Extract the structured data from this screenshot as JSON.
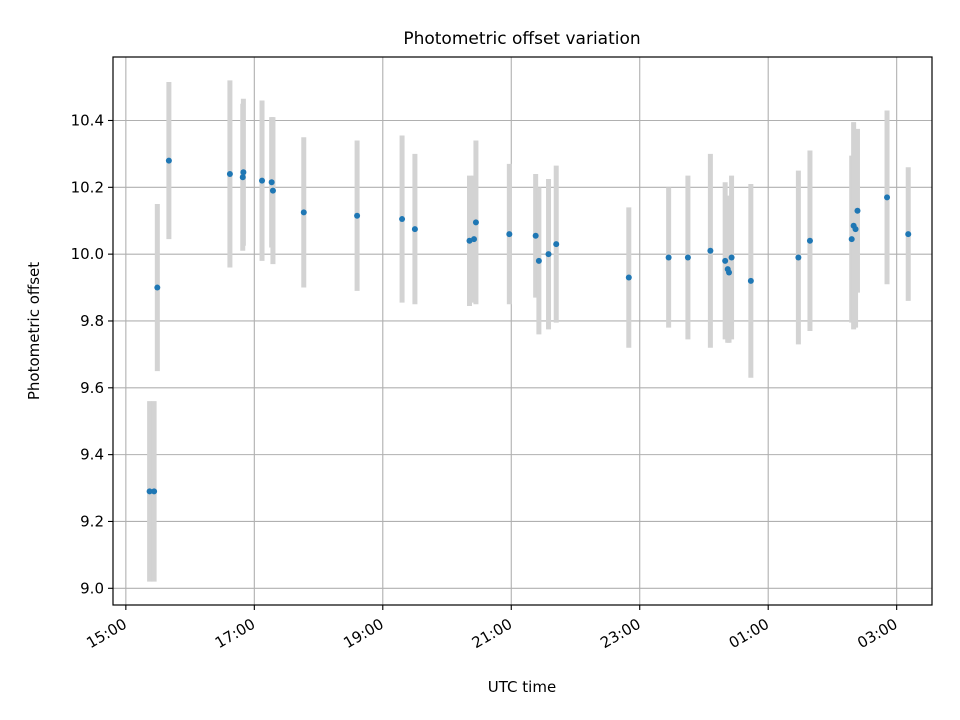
{
  "chart_data": {
    "type": "scatter",
    "title": "Photometric offset variation",
    "xlabel": "UTC time",
    "ylabel": "Photometric offset",
    "xlim_hours": [
      14.8,
      27.55
    ],
    "ylim": [
      8.95,
      10.59
    ],
    "x_ticks": [
      {
        "value": 15,
        "label": "15:00"
      },
      {
        "value": 17,
        "label": "17:00"
      },
      {
        "value": 19,
        "label": "19:00"
      },
      {
        "value": 21,
        "label": "21:00"
      },
      {
        "value": 23,
        "label": "23:00"
      },
      {
        "value": 25,
        "label": "01:00"
      },
      {
        "value": 27,
        "label": "03:00"
      }
    ],
    "y_ticks": [
      {
        "value": 9.0,
        "label": "9.0"
      },
      {
        "value": 9.2,
        "label": "9.2"
      },
      {
        "value": 9.4,
        "label": "9.4"
      },
      {
        "value": 9.6,
        "label": "9.6"
      },
      {
        "value": 9.8,
        "label": "9.8"
      },
      {
        "value": 10.0,
        "label": "10.0"
      },
      {
        "value": 10.2,
        "label": "10.2"
      },
      {
        "value": 10.4,
        "label": "10.4"
      }
    ],
    "grid": true,
    "colors": {
      "point": "#1f77b4",
      "errorbar": "#d3d3d3",
      "grid": "#b0b0b0"
    },
    "series": [
      {
        "points": [
          {
            "x": 15.37,
            "y": 9.29,
            "err": 0.27
          },
          {
            "x": 15.44,
            "y": 9.29,
            "err": 0.27
          },
          {
            "x": 15.49,
            "y": 9.9,
            "err": 0.25
          },
          {
            "x": 15.67,
            "y": 10.28,
            "err": 0.235
          },
          {
            "x": 16.62,
            "y": 10.24,
            "err": 0.28
          },
          {
            "x": 16.82,
            "y": 10.23,
            "err": 0.22
          },
          {
            "x": 16.83,
            "y": 10.245,
            "err": 0.22
          },
          {
            "x": 17.12,
            "y": 10.22,
            "err": 0.24
          },
          {
            "x": 17.27,
            "y": 10.215,
            "err": 0.195
          },
          {
            "x": 17.29,
            "y": 10.19,
            "err": 0.22
          },
          {
            "x": 17.77,
            "y": 10.125,
            "err": 0.225
          },
          {
            "x": 18.6,
            "y": 10.115,
            "err": 0.225
          },
          {
            "x": 19.3,
            "y": 10.105,
            "err": 0.25
          },
          {
            "x": 19.5,
            "y": 10.075,
            "err": 0.225
          },
          {
            "x": 20.35,
            "y": 10.04,
            "err": 0.195
          },
          {
            "x": 20.42,
            "y": 10.045,
            "err": 0.19
          },
          {
            "x": 20.45,
            "y": 10.095,
            "err": 0.245
          },
          {
            "x": 20.97,
            "y": 10.06,
            "err": 0.21
          },
          {
            "x": 21.38,
            "y": 10.055,
            "err": 0.185
          },
          {
            "x": 21.43,
            "y": 9.98,
            "err": 0.22
          },
          {
            "x": 21.58,
            "y": 10.0,
            "err": 0.225
          },
          {
            "x": 21.7,
            "y": 10.03,
            "err": 0.235
          },
          {
            "x": 22.83,
            "y": 9.93,
            "err": 0.21
          },
          {
            "x": 23.45,
            "y": 9.99,
            "err": 0.21
          },
          {
            "x": 23.75,
            "y": 9.99,
            "err": 0.245
          },
          {
            "x": 24.1,
            "y": 10.01,
            "err": 0.29
          },
          {
            "x": 24.33,
            "y": 9.98,
            "err": 0.235
          },
          {
            "x": 24.37,
            "y": 9.955,
            "err": 0.22
          },
          {
            "x": 24.39,
            "y": 9.945,
            "err": 0.21
          },
          {
            "x": 24.43,
            "y": 9.99,
            "err": 0.245
          },
          {
            "x": 24.73,
            "y": 9.92,
            "err": 0.29
          },
          {
            "x": 25.47,
            "y": 9.99,
            "err": 0.26
          },
          {
            "x": 25.65,
            "y": 10.04,
            "err": 0.27
          },
          {
            "x": 26.3,
            "y": 10.045,
            "err": 0.25
          },
          {
            "x": 26.33,
            "y": 10.085,
            "err": 0.31
          },
          {
            "x": 26.36,
            "y": 10.075,
            "err": 0.295
          },
          {
            "x": 26.39,
            "y": 10.13,
            "err": 0.245
          },
          {
            "x": 26.85,
            "y": 10.17,
            "err": 0.26
          },
          {
            "x": 27.18,
            "y": 10.06,
            "err": 0.2
          }
        ]
      }
    ]
  }
}
